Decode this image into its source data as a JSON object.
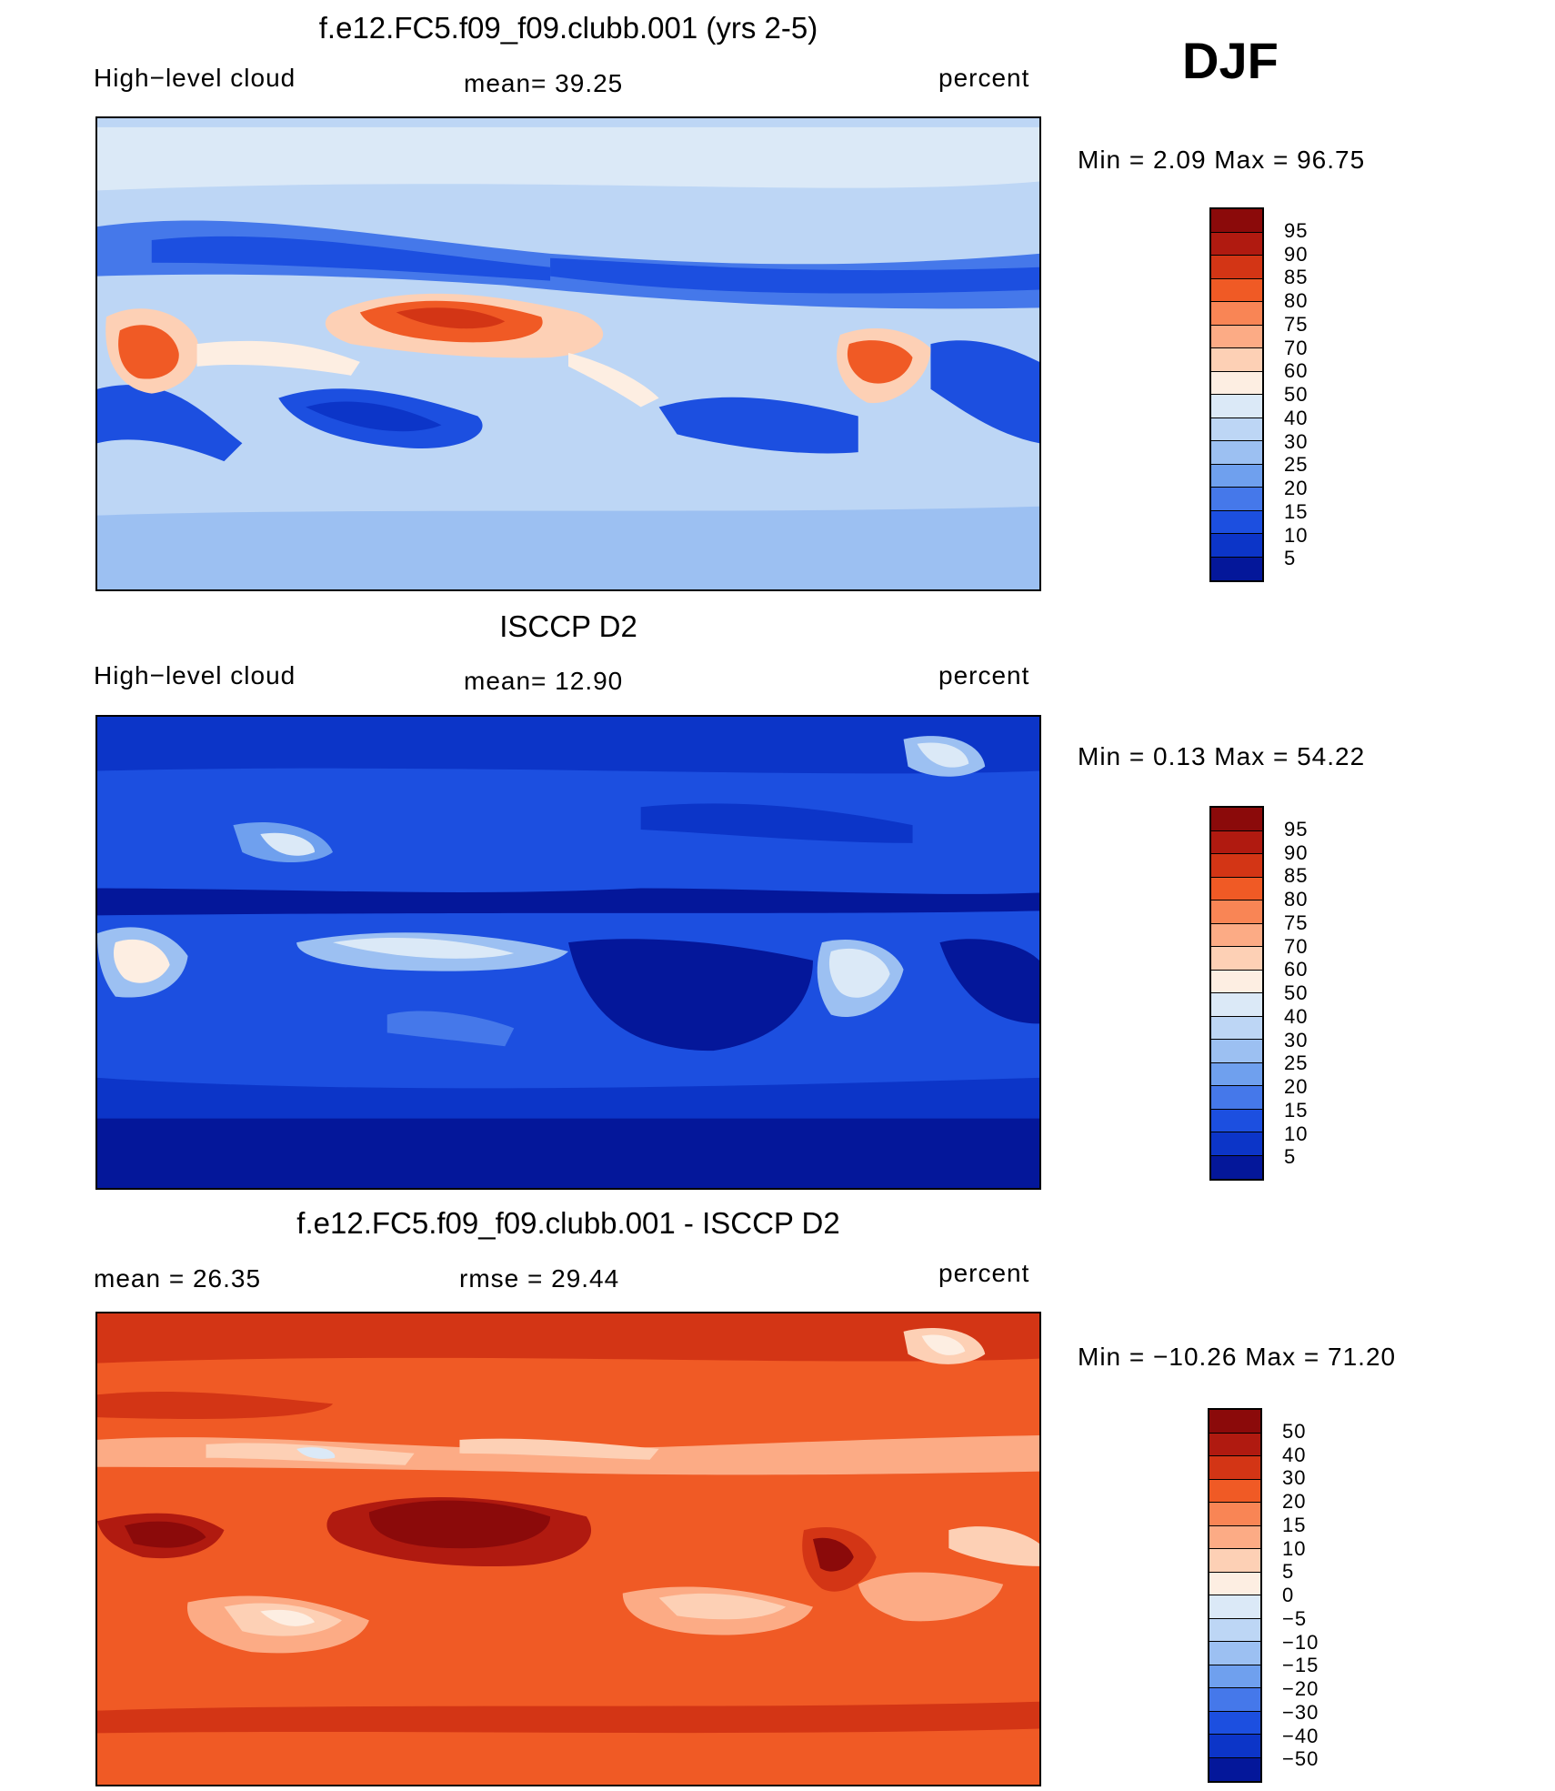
{
  "season": "DJF",
  "panels": [
    {
      "title": "f.e12.FC5.f09_f09.clubb.001 (yrs 2-5)",
      "left_label": "High−level cloud",
      "center_label": "mean=   39.25",
      "right_label": "percent",
      "minmax": "Min  =     2.09  Max  =    96.75",
      "colorbar_labels": [
        "95",
        "90",
        "85",
        "80",
        "75",
        "70",
        "60",
        "50",
        "40",
        "30",
        "25",
        "20",
        "15",
        "10",
        "5"
      ],
      "colorbar_colors": [
        "#8b0a0a",
        "#b01a10",
        "#d33515",
        "#f05a25",
        "#f98555",
        "#fcab85",
        "#fdd0b5",
        "#fdeee2",
        "#dbe9f7",
        "#bdd6f5",
        "#9cc0f2",
        "#6fa0ee",
        "#4578ea",
        "#1c4fe0",
        "#0c35c8",
        "#04179a"
      ],
      "field": "model"
    },
    {
      "title": "ISCCP D2",
      "left_label": "High−level cloud",
      "center_label": "mean=   12.90",
      "right_label": "percent",
      "minmax": "Min  =     0.13  Max  =    54.22",
      "colorbar_labels": [
        "95",
        "90",
        "85",
        "80",
        "75",
        "70",
        "60",
        "50",
        "40",
        "30",
        "25",
        "20",
        "15",
        "10",
        "5"
      ],
      "colorbar_colors": [
        "#8b0a0a",
        "#b01a10",
        "#d33515",
        "#f05a25",
        "#f98555",
        "#fcab85",
        "#fdd0b5",
        "#fdeee2",
        "#dbe9f7",
        "#bdd6f5",
        "#9cc0f2",
        "#6fa0ee",
        "#4578ea",
        "#1c4fe0",
        "#0c35c8",
        "#04179a"
      ],
      "field": "obs"
    },
    {
      "title": "f.e12.FC5.f09_f09.clubb.001 - ISCCP D2",
      "left_label": "mean  =    26.35",
      "center_label": "rmse  =    29.44",
      "right_label": "percent",
      "minmax": "Min  =  −10.26  Max  =    71.20",
      "colorbar_labels": [
        "50",
        "40",
        "30",
        "20",
        "15",
        "10",
        "5",
        "0",
        "−5",
        "−10",
        "−15",
        "−20",
        "−30",
        "−40",
        "−50"
      ],
      "colorbar_colors": [
        "#8b0a0a",
        "#b01a10",
        "#d33515",
        "#f05a25",
        "#f98555",
        "#fcab85",
        "#fdd0b5",
        "#fdeee2",
        "#dbe9f7",
        "#bdd6f5",
        "#9cc0f2",
        "#6fa0ee",
        "#4578ea",
        "#1c4fe0",
        "#0c35c8",
        "#04179a"
      ],
      "field": "diff"
    }
  ]
}
